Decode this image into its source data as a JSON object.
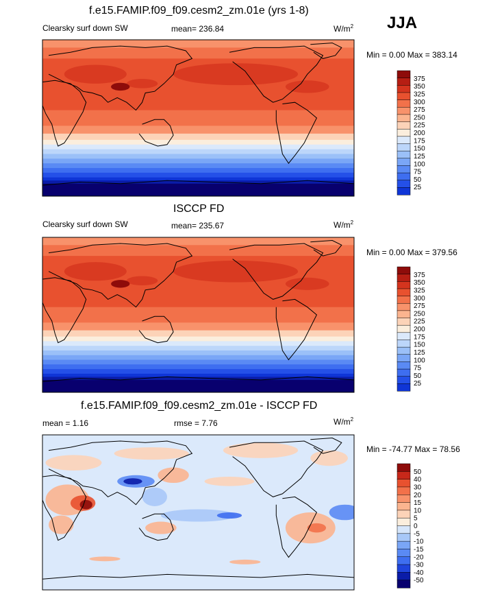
{
  "season": "JJA",
  "palette_abs": [
    "#08006e",
    "#0a1ca8",
    "#0f35d6",
    "#2450e8",
    "#3e6ef0",
    "#5a8af4",
    "#7aa6f6",
    "#9bc0f8",
    "#bcd6fa",
    "#dbe9fb",
    "#fbeedd",
    "#fcd3b8",
    "#fbb48f",
    "#f8926b",
    "#f2714a",
    "#e8512f",
    "#d4341e",
    "#b61e13",
    "#8e0c0a"
  ],
  "palette_diff": [
    "#08006e",
    "#0a1ca8",
    "#1f44dc",
    "#3e6ef0",
    "#5a8af4",
    "#7aa6f6",
    "#a8c8f8",
    "#d6e6fb",
    "#fbeedd",
    "#fcd3b8",
    "#fbb48f",
    "#f8926b",
    "#f2714a",
    "#e8512f",
    "#c8281a",
    "#8e0c0a"
  ],
  "chart_data": [
    {
      "type": "heatmap",
      "title": "f.e15.FAMIP.f09_f09.cesm2_zm.01e (yrs 1-8)",
      "left_label": "Clearsky surf down SW",
      "mean_text": "mean= 236.84",
      "units": "W/m",
      "units_sup": "2",
      "minmax_text": "Min =   0.00 Max = 383.14",
      "colorbar_levels": [
        "375",
        "350",
        "325",
        "300",
        "275",
        "250",
        "225",
        "200",
        "175",
        "150",
        "125",
        "100",
        "75",
        "50",
        "25"
      ]
    },
    {
      "type": "heatmap",
      "title": "ISCCP FD",
      "left_label": "Clearsky surf down SW",
      "mean_text": "mean= 235.67",
      "units": "W/m",
      "units_sup": "2",
      "minmax_text": "Min =   0.00 Max = 379.56",
      "colorbar_levels": [
        "375",
        "350",
        "325",
        "300",
        "275",
        "250",
        "225",
        "200",
        "175",
        "150",
        "125",
        "100",
        "75",
        "50",
        "25"
      ]
    },
    {
      "type": "heatmap",
      "title": "f.e15.FAMIP.f09_f09.cesm2_zm.01e - ISCCP FD",
      "left_label": "mean =   1.16",
      "mean_text": "rmse =   7.76",
      "units": "W/m",
      "units_sup": "2",
      "minmax_text": "Min = -74.77 Max =  78.56",
      "colorbar_levels": [
        "50",
        "40",
        "30",
        "20",
        "15",
        "10",
        "5",
        "0",
        "-5",
        "-10",
        "-15",
        "-20",
        "-30",
        "-40",
        "-50"
      ]
    }
  ]
}
